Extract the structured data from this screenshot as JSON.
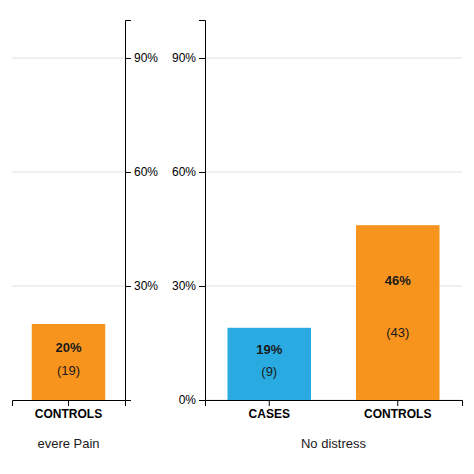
{
  "chart_data": [
    {
      "type": "bar",
      "xlabel": "evere Pain",
      "categories": [
        "CONTROLS"
      ],
      "values": [
        20
      ],
      "value_labels": [
        "20%"
      ],
      "counts": [
        {
          "value": 19,
          "label": "(19)"
        }
      ],
      "colors": [
        "#F7941D"
      ],
      "data_labels": true,
      "ylim": [
        0,
        100
      ],
      "yticks": [
        {
          "value": 30,
          "label": "30%"
        },
        {
          "value": 60,
          "label": "60%"
        },
        {
          "value": 90,
          "label": "90%"
        }
      ],
      "grid": true
    },
    {
      "type": "bar",
      "xlabel": "No distress",
      "categories": [
        "CASES",
        "CONTROLS"
      ],
      "values": [
        19,
        46
      ],
      "value_labels": [
        "19%",
        "46%"
      ],
      "counts": [
        {
          "value": 9,
          "label": "(9)"
        },
        {
          "value": 43,
          "label": "(43)"
        }
      ],
      "colors": [
        "#29ABE2",
        "#F7941D"
      ],
      "data_labels": true,
      "ylim": [
        0,
        100
      ],
      "yticks": [
        {
          "value": 0,
          "label": "0%"
        },
        {
          "value": 30,
          "label": "30%"
        },
        {
          "value": 60,
          "label": "60%"
        },
        {
          "value": 90,
          "label": "90%"
        }
      ],
      "grid": true
    }
  ]
}
